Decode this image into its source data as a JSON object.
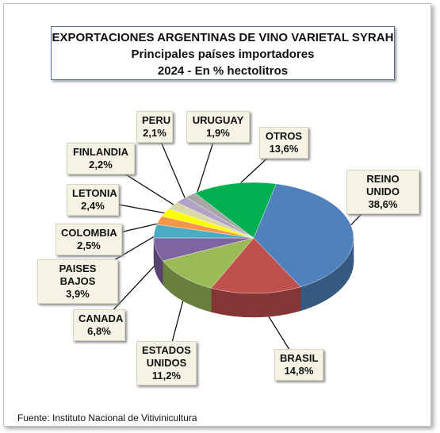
{
  "chart_data": {
    "type": "pie3d",
    "title": "EXPORTACIONES ARGENTINAS DE VINO VARIETAL SYRAH",
    "subtitle": "Principales países importadores",
    "subtitle2": "2024 - En % hectolitros",
    "source": "Fuente: Instituto Nacional de Vitivinicultura",
    "categories": [
      "REINO UNIDO",
      "BRASIL",
      "ESTADOS UNIDOS",
      "CANADA",
      "PAISES BAJOS",
      "COLOMBIA",
      "LETONIA",
      "FINLANDIA",
      "PERU",
      "URUGUAY",
      "OTROS"
    ],
    "values": [
      38.6,
      14.8,
      11.2,
      6.8,
      3.9,
      2.5,
      2.4,
      2.2,
      2.1,
      1.9,
      13.6
    ],
    "value_labels": [
      "38,6%",
      "14,8%",
      "11,2%",
      "6,8%",
      "3,9%",
      "2,5%",
      "2,4%",
      "2,2%",
      "2,1%",
      "1,9%",
      "13,6%"
    ],
    "colors": [
      "#4f81bd",
      "#c0504d",
      "#9bbb59",
      "#8064a2",
      "#4bacc6",
      "#f79646",
      "#ffff00",
      "#d8d8a8",
      "#b3a2c7",
      "#a6a6a6",
      "#00b050"
    ]
  }
}
